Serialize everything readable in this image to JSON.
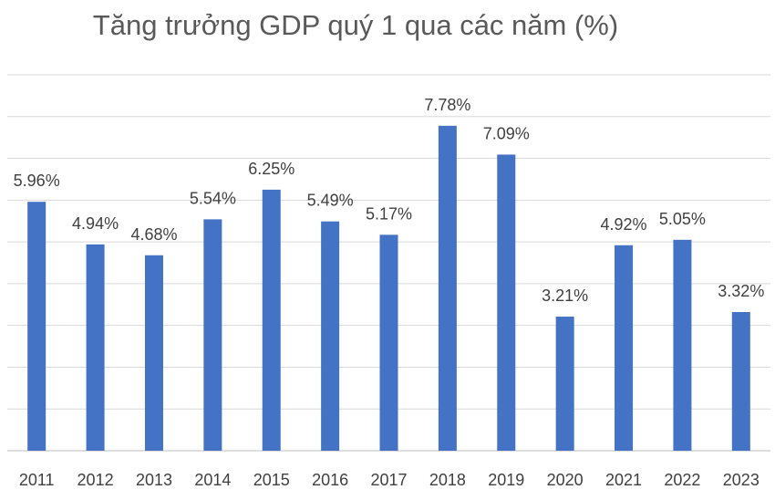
{
  "chart_data": {
    "type": "bar",
    "title": "Tăng trưởng GDP quý 1 qua các năm (%)",
    "categories": [
      "2011",
      "2012",
      "2013",
      "2014",
      "2015",
      "2016",
      "2017",
      "2018",
      "2019",
      "2020",
      "2021",
      "2022",
      "2023"
    ],
    "values": [
      5.96,
      4.94,
      4.68,
      5.54,
      6.25,
      5.49,
      5.17,
      7.78,
      7.09,
      3.21,
      4.92,
      5.05,
      3.32
    ],
    "data_labels": [
      "5.96%",
      "4.94%",
      "4.68%",
      "5.54%",
      "6.25%",
      "5.49%",
      "5.17%",
      "7.78%",
      "7.09%",
      "3.21%",
      "4.92%",
      "5.05%",
      "3.32%"
    ],
    "xlabel": "",
    "ylabel": "",
    "ylim": [
      0,
      9
    ],
    "grid": true,
    "y_tick_labels_shown": false,
    "legend": "none",
    "bar_color": "#4472C4"
  }
}
